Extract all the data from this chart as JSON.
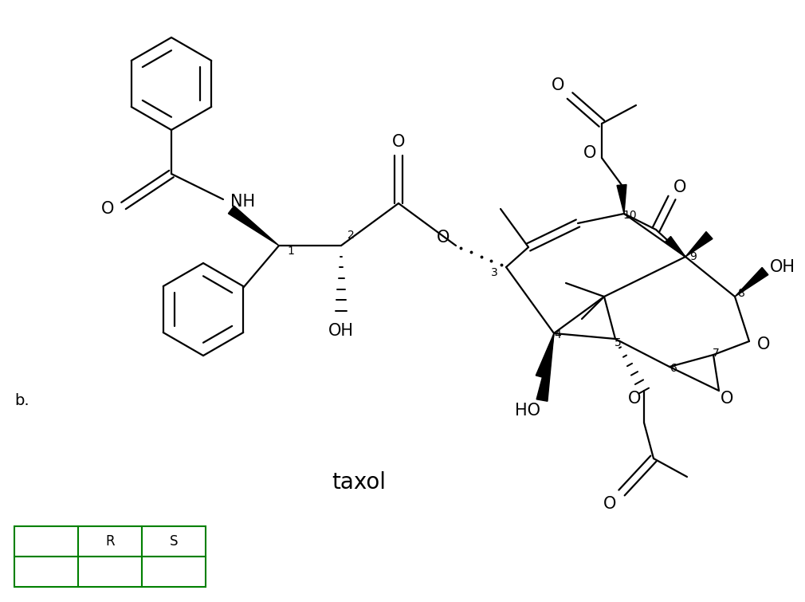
{
  "background_color": "#ffffff",
  "molecule_name": "taxol",
  "table_headers": [
    "",
    "R",
    "S"
  ],
  "table_border_color": "#008000",
  "figsize": [
    10.1,
    7.55
  ],
  "dpi": 100,
  "lw": 1.6,
  "font": "DejaVu Sans"
}
